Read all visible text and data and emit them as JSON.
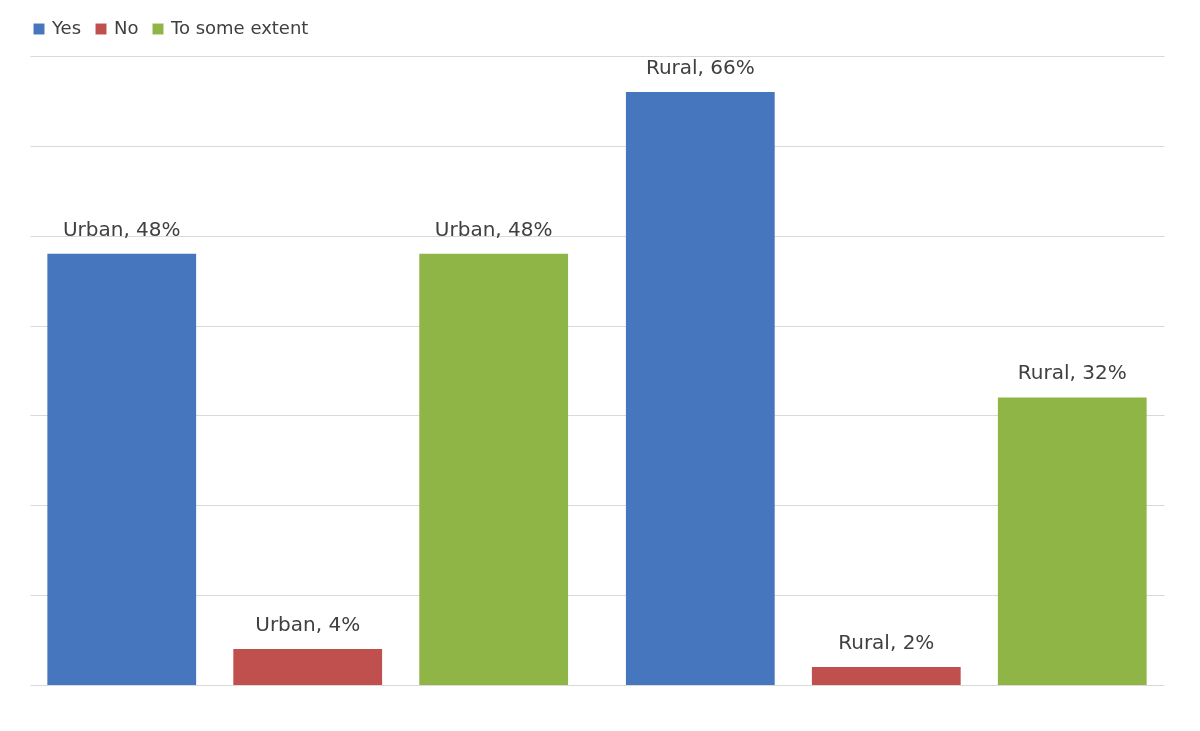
{
  "chart_data": {
    "type": "bar",
    "categories": [
      null,
      null
    ],
    "series": [
      {
        "name": "Yes",
        "color": "#4677be",
        "values": [
          48,
          66
        ],
        "value_labels": [
          "Urban, 48%",
          "Rural, 66%"
        ]
      },
      {
        "name": "No",
        "color": "#c0504d",
        "values": [
          4,
          2
        ],
        "value_labels": [
          "Urban, 4%",
          "Rural, 2%"
        ]
      },
      {
        "name": "To some extent",
        "color": "#8fb547",
        "values": [
          48,
          32
        ],
        "value_labels": [
          "Urban, 48%",
          "Rural, 32%"
        ]
      }
    ],
    "ylim": [
      0,
      70
    ],
    "yticks": [
      0,
      10,
      20,
      30,
      40,
      50,
      60,
      70
    ],
    "grid": "y",
    "tick_labels": false,
    "legend": "top"
  }
}
